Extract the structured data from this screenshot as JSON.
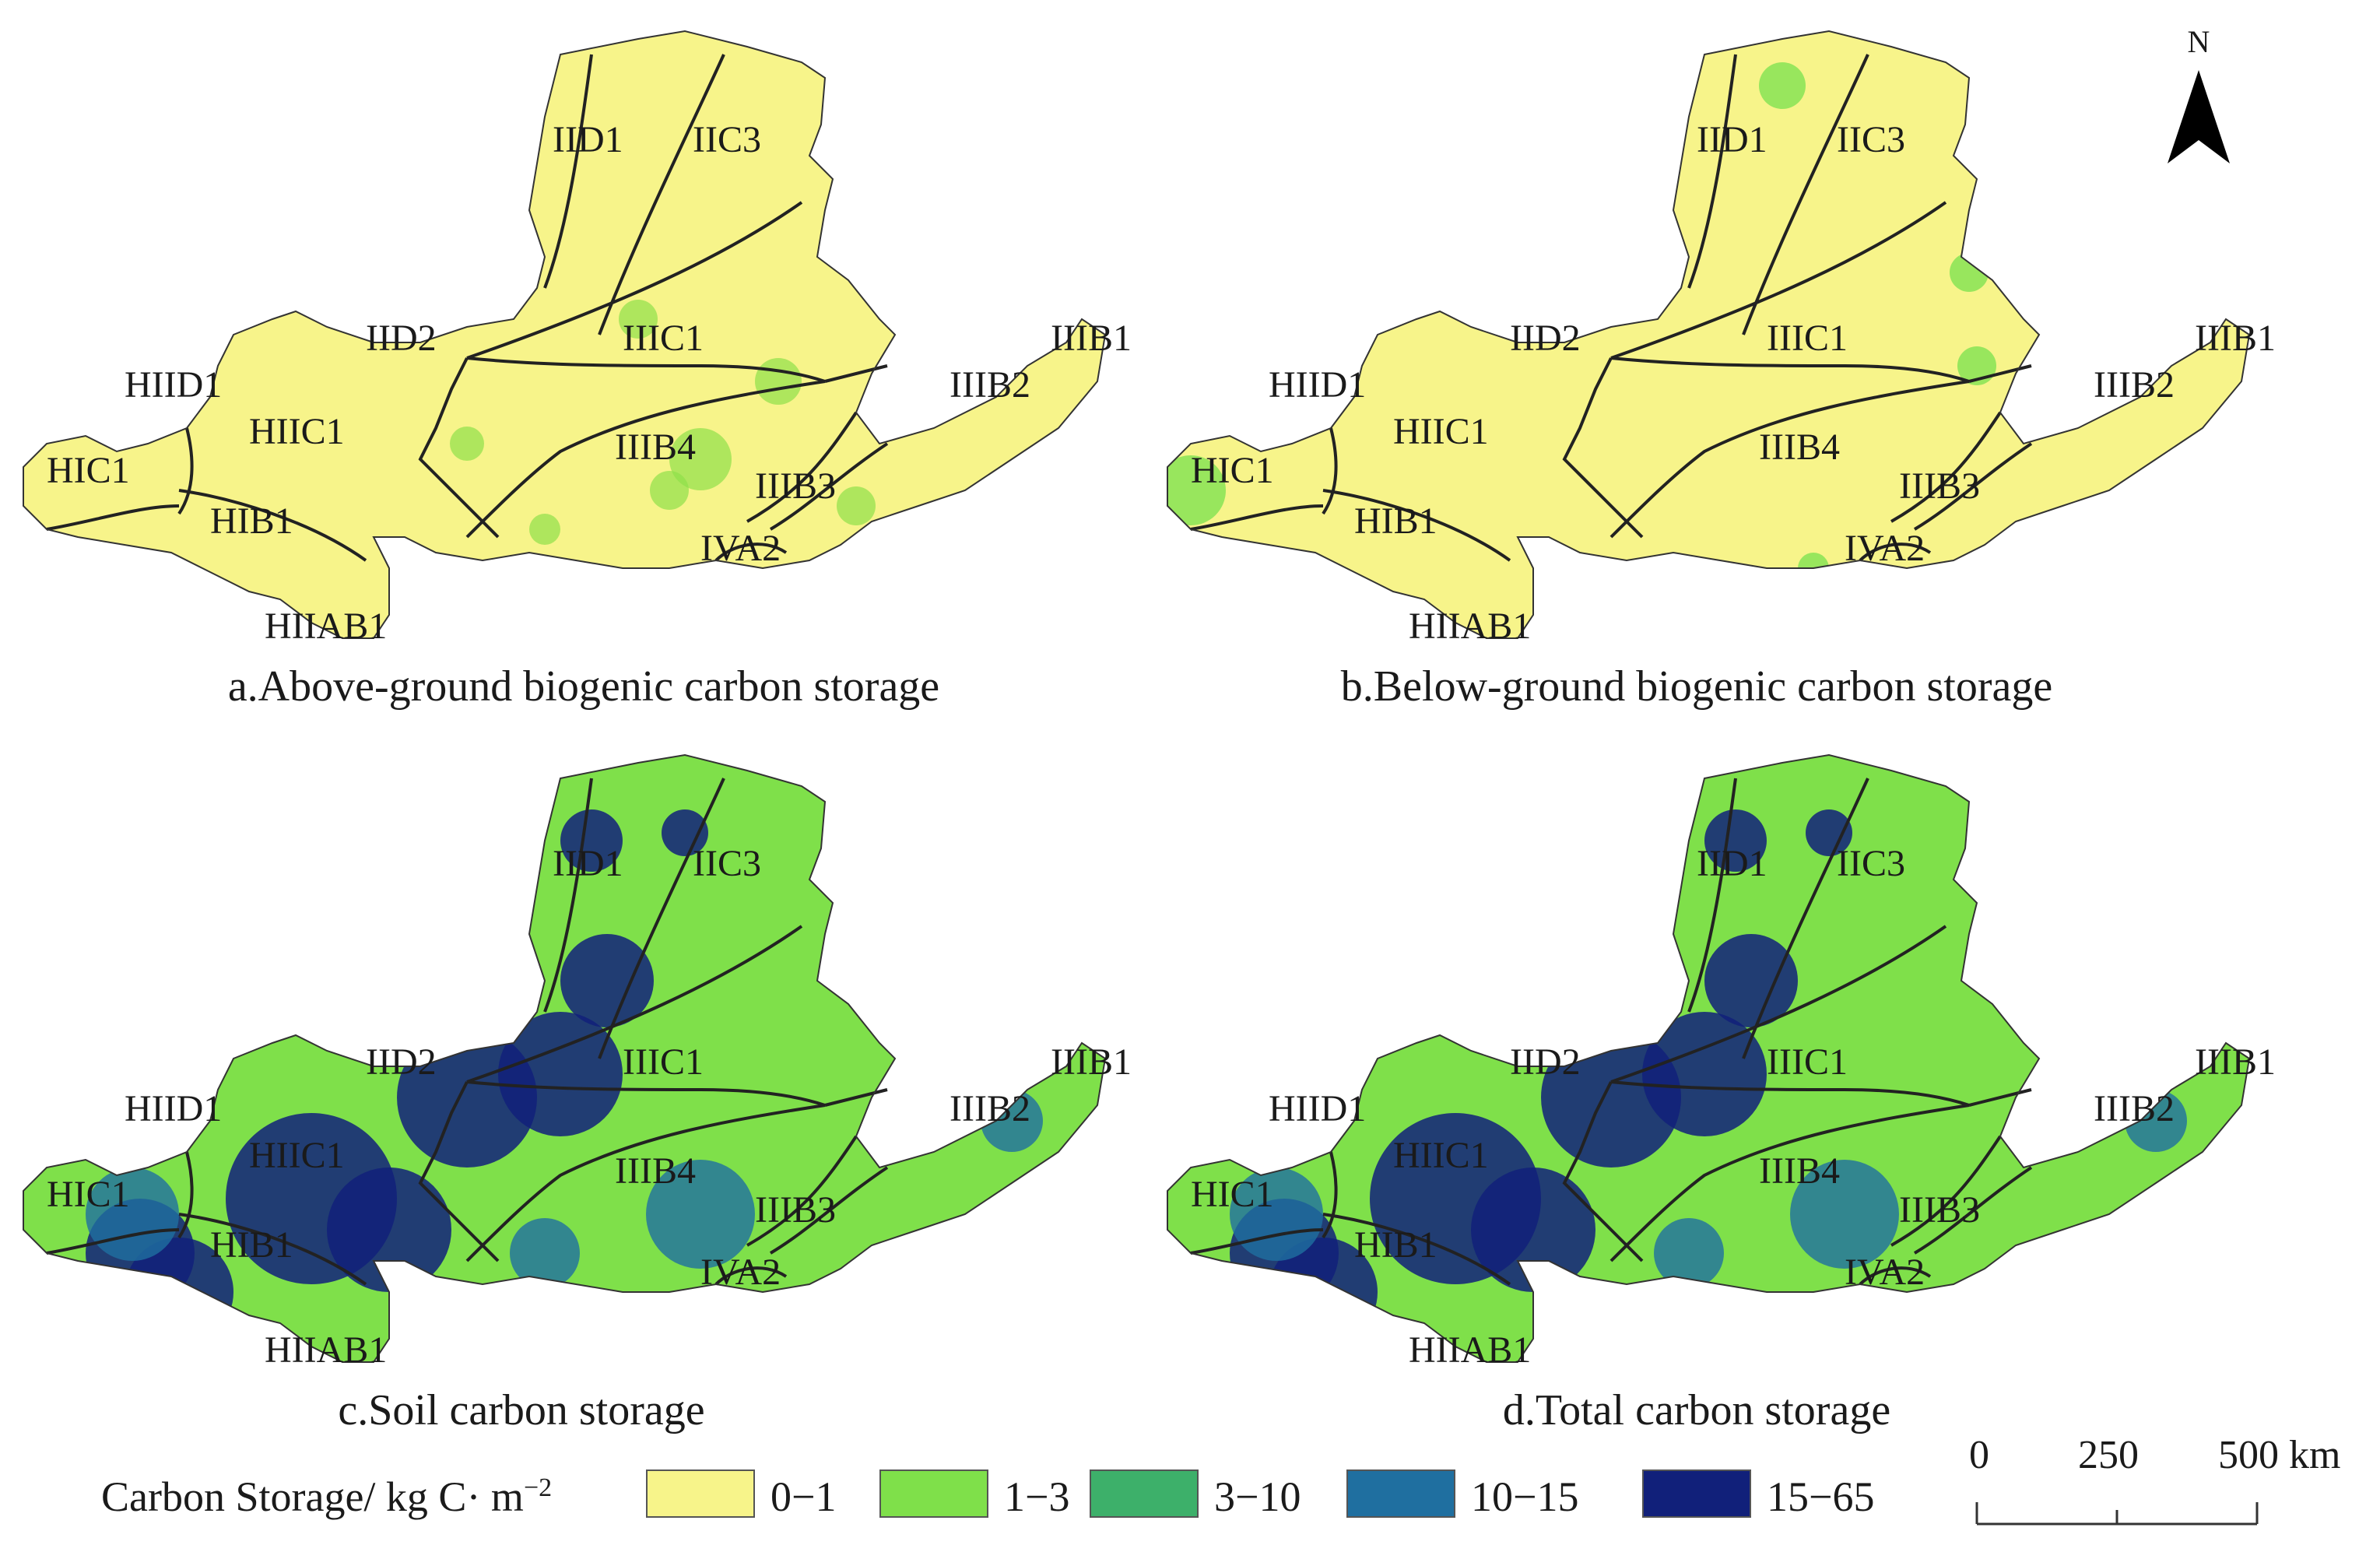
{
  "panels": [
    {
      "caption": "a.Above-ground biogenic carbon storage",
      "labels": [
        "IID1",
        "IIC3",
        "IID2",
        "IIIC1",
        "HIID1",
        "HIIC1",
        "IIIB4",
        "HIC1",
        "HIB1",
        "IIIB3",
        "IVA2",
        "HIIAB1",
        "IIIB2",
        "IIIB1"
      ],
      "fill": "#f7f48a",
      "patch": "#8fe04a"
    },
    {
      "caption": "b.Below-ground biogenic carbon storage",
      "labels": [
        "IID1",
        "IIC3",
        "IID2",
        "IIIC1",
        "HIID1",
        "HIIC1",
        "IIIB4",
        "HIC1",
        "HIB1",
        "IIIB3",
        "IVA2",
        "HIIAB1",
        "IIIB2",
        "IIIB1"
      ],
      "fill": "#f7f48a",
      "patch": "#6fe04a"
    },
    {
      "caption": "c.Soil carbon storage",
      "labels": [
        "IID1",
        "IIC3",
        "IID2",
        "IIIC1",
        "HIID1",
        "HIIC1",
        "IIIB4",
        "HIC1",
        "HIB1",
        "IIIB3",
        "IVA2",
        "HIIAB1",
        "IIIB2",
        "IIIB1"
      ],
      "fill": "#7fe04a",
      "patch": "#11207a"
    },
    {
      "caption": "d.Total carbon storage",
      "labels": [
        "IID1",
        "IIC3",
        "IID2",
        "IIIC1",
        "HIID1",
        "HIIC1",
        "IIIB4",
        "HIC1",
        "HIB1",
        "IIIB3",
        "IVA2",
        "HIIAB1",
        "IIIB2",
        "IIIB1"
      ],
      "fill": "#7fe04a",
      "patch": "#11207a"
    }
  ],
  "north_arrow": {
    "letter": "N"
  },
  "legend": {
    "title": "Carbon Storage/ kg C· m",
    "title_sup": "−2",
    "items": [
      {
        "label": "0−1",
        "color": "#f7f48a"
      },
      {
        "label": "1−3",
        "color": "#7fe04a"
      },
      {
        "label": "3−10",
        "color": "#3db06a"
      },
      {
        "label": "10−15",
        "color": "#1f6fa0"
      },
      {
        "label": "15−65",
        "color": "#11207a"
      }
    ]
  },
  "scale_bar": {
    "ticks": [
      "0",
      "250",
      "500 km"
    ]
  }
}
